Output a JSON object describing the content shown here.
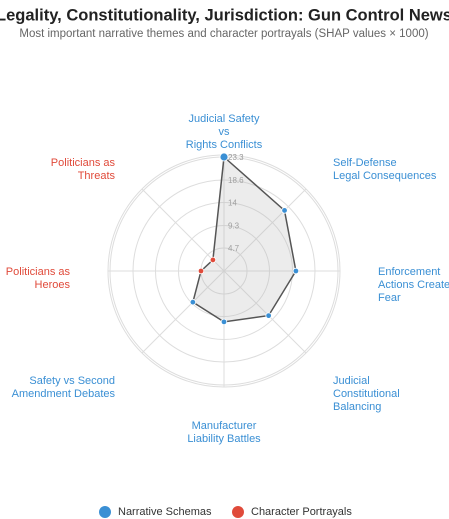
{
  "chart_data": {
    "type": "radar",
    "title": "Legality, Constitutionality, Jurisdiction: Gun Control News",
    "subtitle": "Most important narrative themes and character portrayals (SHAP values × 1000)",
    "categories": [
      [
        "Judicial Safety",
        "vs",
        "Rights Conflicts"
      ],
      [
        "Self-Defense",
        "Legal Consequences"
      ],
      [
        "Enforcement",
        "Actions Create",
        "Fear"
      ],
      [
        "Judicial",
        "Constitutional",
        "Balancing"
      ],
      [
        "Manufacturer",
        "Liability Battles"
      ],
      [
        "Safety vs Second",
        "Amendment Debates"
      ],
      [
        "Politicians as",
        "Heroes"
      ],
      [
        "Politicians as",
        "Threats"
      ]
    ],
    "series": [
      {
        "name": "Narrative Schemas",
        "color": "#3a8fd4",
        "values": [
          23.3,
          17.5,
          14.7,
          12.9,
          10.4,
          9.0,
          null,
          null
        ]
      },
      {
        "name": "Character Portrayals",
        "color": "#e04a3a",
        "values": [
          null,
          null,
          null,
          null,
          null,
          null,
          4.7,
          3.2
        ]
      }
    ],
    "ylim": [
      0,
      23.3
    ],
    "yticks": [
      4.7,
      9.3,
      14.0,
      18.6,
      23.3
    ],
    "grid": true,
    "legend": "bottom"
  }
}
